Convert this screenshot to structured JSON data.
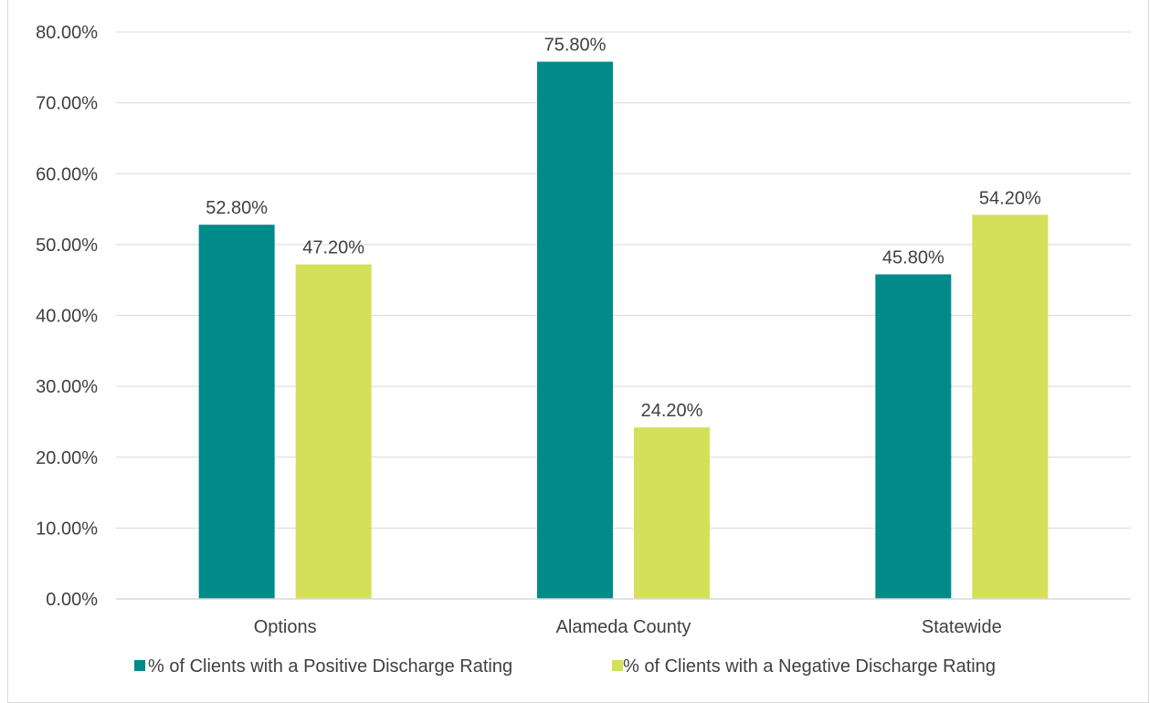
{
  "chart_data": {
    "type": "bar",
    "categories": [
      "Options",
      "Alameda County",
      "Statewide"
    ],
    "series": [
      {
        "name": "% of Clients with a Positive Discharge Rating",
        "color": "#008b8b",
        "values": [
          52.8,
          75.8,
          45.8
        ],
        "labels": [
          "52.80%",
          "75.80%",
          "45.80%"
        ]
      },
      {
        "name": "% of Clients with a Negative Discharge Rating",
        "color": "#d5e05a",
        "values": [
          47.2,
          24.2,
          54.2
        ],
        "labels": [
          "47.20%",
          "24.20%",
          "54.20%"
        ]
      }
    ],
    "ylim": [
      0,
      80
    ],
    "yticks": [
      0,
      10,
      20,
      30,
      40,
      50,
      60,
      70,
      80
    ],
    "ytick_labels": [
      "0.00%",
      "10.00%",
      "20.00%",
      "30.00%",
      "40.00%",
      "50.00%",
      "60.00%",
      "70.00%",
      "80.00%"
    ],
    "grid": true,
    "gridline_color": "#d9d9d9",
    "legend_position": "bottom",
    "title": "",
    "xlabel": "",
    "ylabel": ""
  }
}
